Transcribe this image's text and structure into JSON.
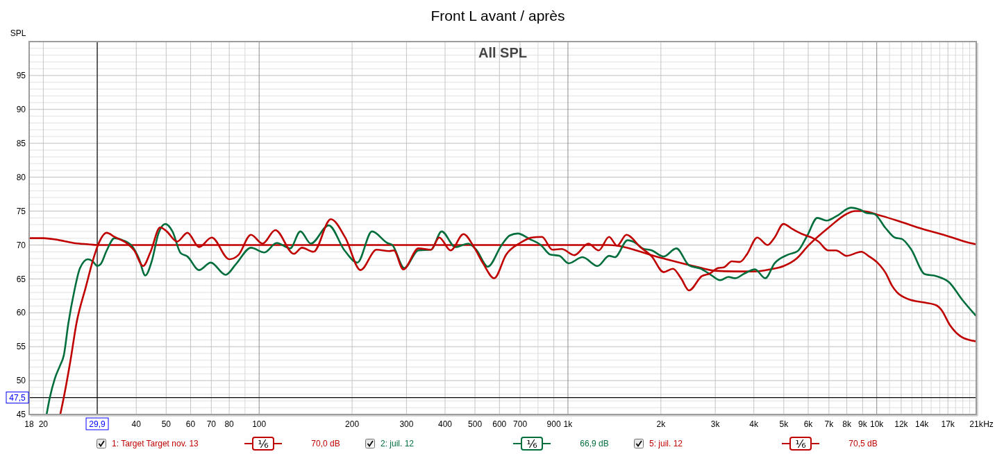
{
  "chart_data": {
    "type": "line",
    "title": "Front L avant / après",
    "subtitle": "All SPL",
    "ylabel": "SPL",
    "xlabel": "Hz",
    "log": "x",
    "grid": true,
    "legend": "bottom",
    "xlim": [
      18,
      21000
    ],
    "ylim": [
      45,
      100
    ],
    "xticks": [
      18,
      20,
      {
        "value": 30,
        "label": null
      },
      40,
      50,
      60,
      70,
      80,
      {
        "value": 90,
        "label": null
      },
      100,
      200,
      300,
      400,
      500,
      600,
      700,
      {
        "value": 800,
        "label": null
      },
      900,
      {
        "value": 1000,
        "label": "1k"
      },
      {
        "value": 2000,
        "label": "2k"
      },
      {
        "value": 3000,
        "label": "3k"
      },
      {
        "value": 4000,
        "label": "4k"
      },
      {
        "value": 5000,
        "label": "5k"
      },
      {
        "value": 6000,
        "label": "6k"
      },
      {
        "value": 7000,
        "label": "7k"
      },
      {
        "value": 8000,
        "label": "8k"
      },
      {
        "value": 9000,
        "label": "9k"
      },
      {
        "value": 10000,
        "label": "10k"
      },
      {
        "value": 11000,
        "label": null
      },
      {
        "value": 12000,
        "label": "12k"
      },
      {
        "value": 13000,
        "label": null
      },
      {
        "value": 14000,
        "label": "14k"
      },
      {
        "value": 15000,
        "label": null
      },
      {
        "value": 16000,
        "label": null
      },
      {
        "value": 17000,
        "label": "17k"
      },
      {
        "value": 18000,
        "label": null
      },
      {
        "value": 19000,
        "label": null
      },
      {
        "value": 20000,
        "label": null
      },
      {
        "value": 21000,
        "label": "21k"
      }
    ],
    "yticks": [
      45,
      {
        "value": 46,
        "label": null
      },
      {
        "value": 47,
        "label": null
      },
      {
        "value": 48,
        "label": null
      },
      {
        "value": 49,
        "label": null
      },
      50,
      {
        "value": 51,
        "label": null
      },
      {
        "value": 52,
        "label": null
      },
      {
        "value": 53,
        "label": null
      },
      {
        "value": 54,
        "label": null
      },
      55,
      {
        "value": 56,
        "label": null
      },
      {
        "value": 57,
        "label": null
      },
      {
        "value": 58,
        "label": null
      },
      {
        "value": 59,
        "label": null
      },
      60,
      {
        "value": 61,
        "label": null
      },
      {
        "value": 62,
        "label": null
      },
      {
        "value": 63,
        "label": null
      },
      {
        "value": 64,
        "label": null
      },
      65,
      {
        "value": 66,
        "label": null
      },
      {
        "value": 67,
        "label": null
      },
      {
        "value": 68,
        "label": null
      },
      {
        "value": 69,
        "label": null
      },
      70,
      {
        "value": 71,
        "label": null
      },
      {
        "value": 72,
        "label": null
      },
      {
        "value": 73,
        "label": null
      },
      {
        "value": 74,
        "label": null
      },
      75,
      {
        "value": 76,
        "label": null
      },
      {
        "value": 77,
        "label": null
      },
      {
        "value": 78,
        "label": null
      },
      {
        "value": 79,
        "label": null
      },
      80,
      {
        "value": 81,
        "label": null
      },
      {
        "value": 82,
        "label": null
      },
      {
        "value": 83,
        "label": null
      },
      {
        "value": 84,
        "label": null
      },
      85,
      {
        "value": 86,
        "label": null
      },
      {
        "value": 87,
        "label": null
      },
      {
        "value": 88,
        "label": null
      },
      {
        "value": 89,
        "label": null
      },
      90,
      {
        "value": 91,
        "label": null
      },
      {
        "value": 92,
        "label": null
      },
      {
        "value": 93,
        "label": null
      },
      {
        "value": 94,
        "label": null
      },
      95,
      {
        "value": 96,
        "label": null
      },
      {
        "value": 97,
        "label": null
      },
      {
        "value": 98,
        "label": null
      },
      {
        "value": 99,
        "label": null
      }
    ],
    "ref_lines": [
      {
        "axis": "x",
        "value": 29.9,
        "label": "29,9",
        "color": "#000000"
      },
      {
        "axis": "y",
        "value": 47.5,
        "label": "47,5",
        "color": "#000000"
      }
    ],
    "annotations": [
      "¹⁄₆",
      "70,0 dB",
      "¹⁄₆",
      "66,9 dB",
      "¹⁄₆",
      "70,5 dB"
    ],
    "series": [
      {
        "name": "1: Target Target nov. 13",
        "color": "#c00000",
        "x": [
          18,
          20,
          22,
          25,
          28,
          30,
          100,
          1000,
          1350,
          2000,
          2600,
          3000,
          3500,
          4000,
          4500,
          5000,
          5500,
          6000,
          7000,
          8000,
          8500,
          9000,
          10000,
          12000,
          14000,
          17000,
          20000,
          21000
        ],
        "values": [
          71.0,
          71.0,
          70.8,
          70.3,
          70.1,
          70.0,
          70.0,
          70.0,
          70.0,
          68.1,
          66.8,
          66.2,
          66.1,
          66.1,
          66.4,
          66.9,
          68.0,
          69.9,
          72.6,
          74.6,
          75.0,
          75.0,
          74.5,
          73.4,
          72.4,
          71.3,
          70.3,
          70.1
        ]
      },
      {
        "name": "2: juil. 12",
        "color": "#006e3c",
        "x": [
          20.5,
          21.0,
          21.8,
          22.7,
          23.3,
          24.1,
          25.2,
          26.3,
          27.9,
          28.9,
          29.9,
          30.7,
          32.1,
          34.0,
          36.2,
          38.8,
          40.8,
          42.8,
          44.9,
          47.2,
          49.7,
          52.4,
          55.7,
          58.6,
          63.9,
          69.7,
          77.9,
          84.2,
          94.1,
          104,
          114,
          126,
          136,
          147,
          168,
          189,
          208,
          232,
          260,
          270,
          295,
          328,
          360,
          390,
          432,
          475,
          505,
          550,
          610,
          648,
          688,
          750,
          817,
          876,
          938,
          1005,
          1115,
          1247,
          1359,
          1419,
          1560,
          1657,
          1745,
          1869,
          2040,
          2244,
          2467,
          2690,
          2881,
          3113,
          3307,
          3483,
          3732,
          4032,
          4356,
          4668,
          5176,
          5546,
          5943,
          6422,
          6881,
          7435,
          8245,
          8833,
          9302,
          9795,
          10676,
          11440,
          12045,
          12905,
          14310,
          15600,
          17150,
          18860,
          20910
        ],
        "values": [
          45.0,
          47.5,
          50.3,
          52.3,
          53.7,
          58.4,
          63.2,
          66.6,
          67.9,
          67.6,
          66.9,
          67.2,
          69.2,
          71.0,
          70.7,
          69.8,
          68.0,
          65.5,
          67.6,
          71.7,
          73.1,
          72.0,
          68.8,
          68.3,
          66.3,
          67.4,
          65.6,
          67.2,
          69.6,
          68.9,
          70.3,
          69.5,
          72.0,
          70.2,
          72.9,
          69.2,
          67.4,
          72.0,
          70.3,
          70.0,
          66.6,
          69.2,
          69.3,
          72.0,
          69.7,
          70.2,
          69.3,
          66.8,
          70.0,
          71.4,
          71.7,
          70.9,
          70.0,
          68.6,
          68.4,
          67.3,
          68.2,
          66.9,
          68.4,
          68.2,
          70.7,
          70.3,
          69.5,
          69.2,
          68.3,
          69.5,
          67.0,
          66.5,
          65.7,
          64.8,
          65.3,
          65.1,
          65.8,
          66.4,
          65.1,
          67.3,
          68.6,
          69.1,
          71.3,
          74.0,
          73.6,
          74.3,
          75.5,
          75.2,
          74.7,
          74.6,
          72.5,
          71.1,
          70.9,
          69.4,
          65.7,
          65.4,
          64.5,
          62.0,
          59.6
        ]
      },
      {
        "name": "5: juil. 12",
        "color": "#c00000",
        "x": [
          22.7,
          23.3,
          24.5,
          25.6,
          27.5,
          28.9,
          29.9,
          32.1,
          34.0,
          37.4,
          39.4,
          42.1,
          44.5,
          47.8,
          50.2,
          54.2,
          58.6,
          63.9,
          70.2,
          80.0,
          85.6,
          94.1,
          102.6,
          112.8,
          129.5,
          137.6,
          150,
          170.6,
          190,
          213,
          240,
          264,
          273,
          293,
          328,
          360,
          383,
          417,
          459,
          496,
          531,
          577,
          631,
          700,
          763,
          824,
          891,
          954,
          1049,
          1164,
          1258,
          1359,
          1443,
          1547,
          1715,
          1869,
          2040,
          2187,
          2323,
          2467,
          2713,
          2881,
          3060,
          3197,
          3394,
          3605,
          3796,
          4102,
          4433,
          4668,
          4984,
          5358,
          5741,
          6152,
          6475,
          6965,
          7373,
          7992,
          8910,
          9463,
          10052,
          10676,
          11240,
          11640,
          12685,
          14310,
          15600,
          16150,
          17300,
          18860,
          20910
        ],
        "values": [
          45.0,
          47.5,
          53.0,
          58.4,
          63.9,
          67.6,
          69.7,
          71.8,
          71.2,
          70.2,
          69.2,
          66.9,
          69.0,
          72.6,
          72.0,
          70.5,
          71.8,
          69.7,
          71.1,
          67.9,
          68.5,
          71.5,
          70.2,
          72.2,
          68.7,
          69.6,
          69.0,
          73.8,
          71.1,
          66.3,
          69.3,
          69.1,
          69.2,
          66.4,
          69.5,
          69.3,
          71.1,
          69.2,
          71.6,
          69.7,
          67.3,
          65.1,
          68.6,
          70.3,
          71.1,
          71.2,
          69.3,
          69.4,
          68.5,
          70.2,
          69.2,
          71.2,
          69.9,
          71.5,
          69.7,
          68.3,
          66.0,
          66.5,
          65.1,
          63.3,
          65.4,
          65.8,
          66.6,
          66.7,
          67.6,
          67.5,
          68.6,
          71.1,
          70.0,
          71.1,
          73.1,
          72.3,
          71.6,
          71.1,
          70.5,
          69.2,
          69.2,
          68.4,
          69.0,
          68.3,
          67.4,
          65.9,
          63.9,
          63.0,
          62.0,
          61.5,
          61.1,
          60.5,
          58.1,
          56.4,
          55.8
        ]
      }
    ]
  }
}
